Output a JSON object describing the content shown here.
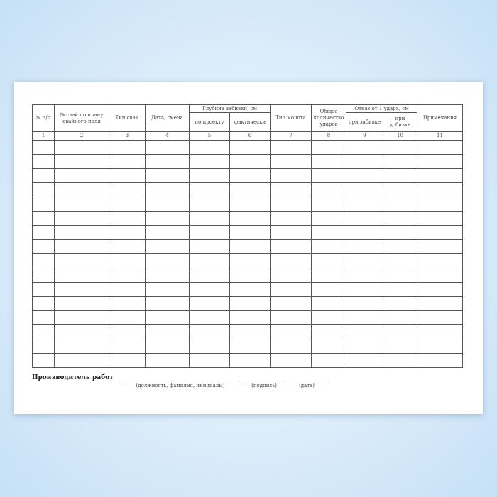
{
  "table": {
    "headers": {
      "col1": "№ п/п",
      "col2": "№ свай по плану свайного поля",
      "col3": "Тип сваи",
      "col4": "Дата, смена",
      "depth_group": "Глубина забивки, см",
      "col5": "по проекту",
      "col6": "фактически",
      "col7": "Тип молота",
      "col8": "Общее количество ударов",
      "refusal_group": "Отказ от 1 удара, см",
      "col9": "при забивке",
      "col10": "при добивке",
      "col11": "Примечания"
    },
    "numbers": [
      "1",
      "2",
      "3",
      "4",
      "5",
      "6",
      "7",
      "8",
      "9",
      "10",
      "11"
    ],
    "empty_rows": 16
  },
  "footer": {
    "title": "Производитель работ",
    "position_caption": "(должность, фамилия, инициалы)",
    "signature_caption": "(подпись)",
    "date_caption": "(дата)"
  }
}
